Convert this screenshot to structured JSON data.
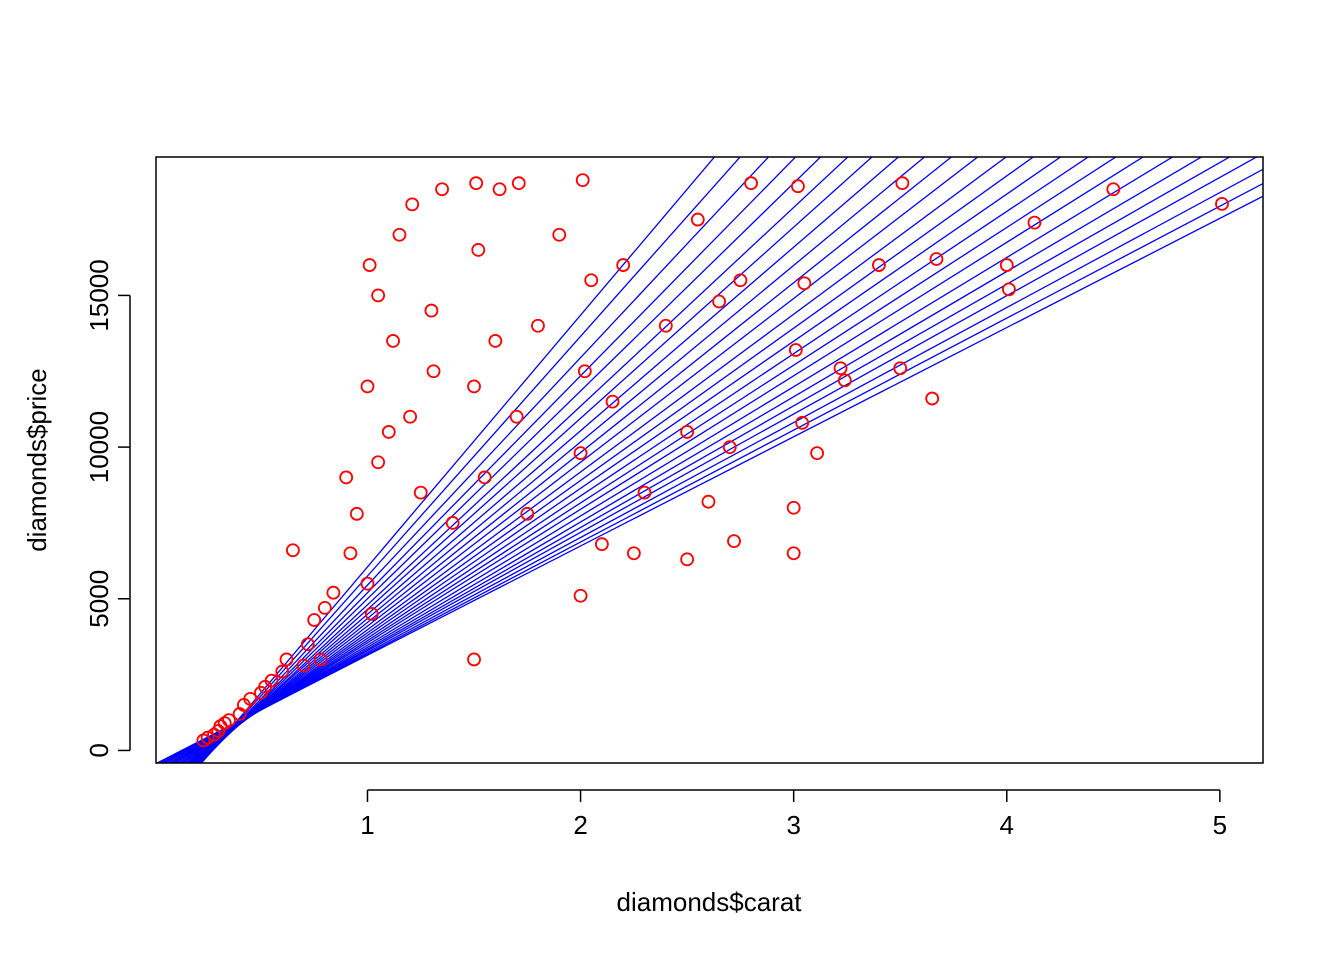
{
  "chart_data": {
    "type": "scatter",
    "title": "",
    "xlabel": "diamonds$carat",
    "ylabel": "diamonds$price",
    "xlim": [
      0.2,
      5.01
    ],
    "ylim": [
      326,
      18823
    ],
    "xticks": [
      "1",
      "2",
      "3",
      "4",
      "5"
    ],
    "yticks": [
      "0",
      "5000",
      "10000",
      "15000"
    ],
    "grid": false,
    "legend": "none",
    "point_color": "#ff0000",
    "line_color": "#0000ff",
    "series": [
      {
        "type": "scatter",
        "x": [
          0.23,
          0.25,
          0.28,
          0.3,
          0.31,
          0.33,
          0.35,
          0.4,
          0.42,
          0.45,
          0.5,
          0.52,
          0.55,
          0.6,
          0.62,
          0.65,
          0.7,
          0.72,
          0.75,
          0.78,
          0.8,
          0.84,
          0.9,
          0.92,
          0.95,
          1.0,
          1.0,
          1.01,
          1.02,
          1.05,
          1.05,
          1.1,
          1.12,
          1.15,
          1.2,
          1.21,
          1.25,
          1.3,
          1.31,
          1.35,
          1.4,
          1.5,
          1.5,
          1.51,
          1.52,
          1.55,
          1.6,
          1.62,
          1.7,
          1.71,
          1.75,
          1.8,
          1.9,
          2.0,
          2.0,
          2.01,
          2.02,
          2.05,
          2.1,
          2.15,
          2.2,
          2.25,
          2.3,
          2.4,
          2.5,
          2.5,
          2.55,
          2.6,
          2.65,
          2.7,
          2.72,
          2.75,
          2.8,
          3.0,
          3.0,
          3.01,
          3.02,
          3.04,
          3.05,
          3.11,
          3.22,
          3.24,
          3.4,
          3.5,
          3.51,
          3.65,
          3.67,
          4.0,
          4.01,
          4.13,
          4.5,
          5.01
        ],
        "y": [
          330,
          420,
          520,
          640,
          800,
          900,
          1000,
          1200,
          1500,
          1700,
          1900,
          2100,
          2300,
          2600,
          3000,
          6600,
          2800,
          3500,
          4300,
          3000,
          4700,
          5200,
          9000,
          6500,
          7800,
          5500,
          12000,
          16000,
          4500,
          9500,
          15000,
          10500,
          13500,
          17000,
          11000,
          18000,
          8500,
          14500,
          12500,
          18500,
          7500,
          3000,
          12000,
          18700,
          16500,
          9000,
          13500,
          18500,
          11000,
          18700,
          7800,
          14000,
          17000,
          5100,
          9800,
          18800,
          12500,
          15500,
          6800,
          11500,
          16000,
          6500,
          8500,
          14000,
          6300,
          10500,
          17500,
          8200,
          14800,
          10000,
          6900,
          15500,
          18700,
          6500,
          8000,
          13200,
          18600,
          10800,
          15400,
          9800,
          12600,
          12200,
          16000,
          12600,
          18700,
          11600,
          16200,
          16000,
          15200,
          17400,
          18500,
          18018
        ]
      },
      {
        "type": "fit-lines",
        "name": "",
        "lines": [
          {
            "intercept": -2250,
            "slope": 8300
          },
          {
            "intercept": -2150,
            "slope": 7900
          },
          {
            "intercept": -2050,
            "slope": 7500
          },
          {
            "intercept": -1950,
            "slope": 7150
          },
          {
            "intercept": -1850,
            "slope": 6850
          },
          {
            "intercept": -1750,
            "slope": 6550
          },
          {
            "intercept": -1650,
            "slope": 6300
          },
          {
            "intercept": -1560,
            "slope": 6050
          },
          {
            "intercept": -1470,
            "slope": 5820
          },
          {
            "intercept": -1380,
            "slope": 5600
          },
          {
            "intercept": -1300,
            "slope": 5400
          },
          {
            "intercept": -1220,
            "slope": 5200
          },
          {
            "intercept": -1140,
            "slope": 5020
          },
          {
            "intercept": -1060,
            "slope": 4850
          },
          {
            "intercept": -990,
            "slope": 4690
          },
          {
            "intercept": -920,
            "slope": 4540
          },
          {
            "intercept": -850,
            "slope": 4400
          },
          {
            "intercept": -790,
            "slope": 4260
          },
          {
            "intercept": -730,
            "slope": 4130
          },
          {
            "intercept": -670,
            "slope": 4010
          },
          {
            "intercept": -610,
            "slope": 3900
          },
          {
            "intercept": -560,
            "slope": 3790
          },
          {
            "intercept": -510,
            "slope": 3690
          },
          {
            "intercept": -460,
            "slope": 3600
          }
        ]
      }
    ]
  }
}
